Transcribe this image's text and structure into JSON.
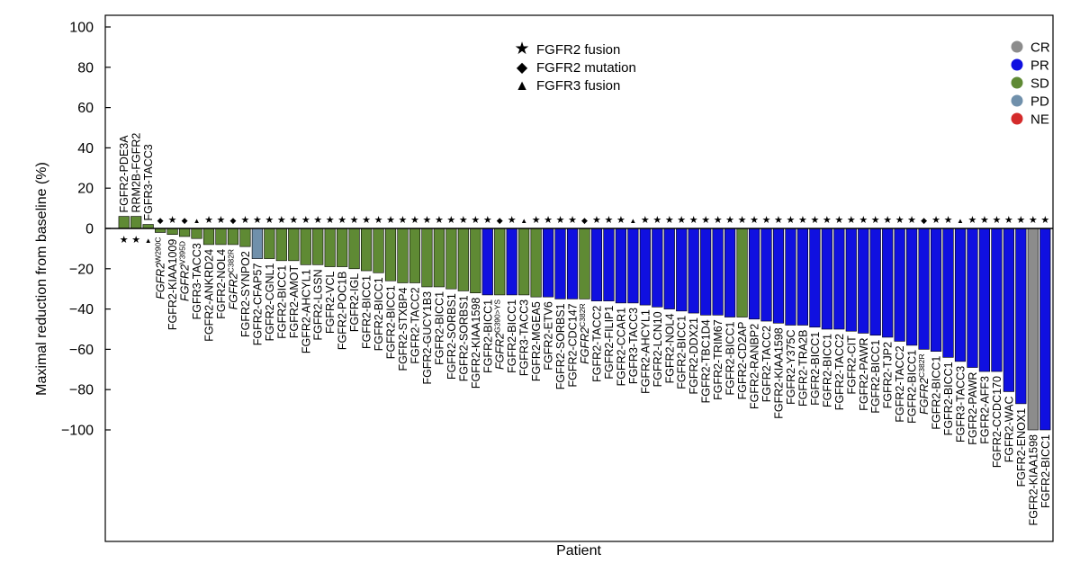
{
  "chart_data": {
    "type": "bar",
    "title": "",
    "xlabel": "Patient",
    "ylabel": "Maximal reduction from baseline (%)",
    "ylim": [
      -160,
      105
    ],
    "yticks": [
      100,
      80,
      60,
      40,
      20,
      0,
      -20,
      -40,
      -60,
      -80,
      -100
    ],
    "ytick_labels": [
      "100",
      "80",
      "60",
      "40",
      "20",
      "0",
      "−20",
      "−40",
      "−60",
      "−80",
      "−100"
    ],
    "grid": false,
    "colors": {
      "CR": "#8c8c8c",
      "PR": "#1010e0",
      "SD": "#5f8a34",
      "PD": "#7090ab",
      "NE": "#d42b2b"
    },
    "marker_glyphs": {
      "fusion": "★",
      "mutation": "◆",
      "fgfr3": "▲"
    },
    "marker_legend": [
      {
        "marker": "fusion",
        "label": "FGFR2 fusion"
      },
      {
        "marker": "mutation",
        "label": "FGFR2 mutation"
      },
      {
        "marker": "fgfr3",
        "label": "FGFR3 fusion"
      }
    ],
    "response_legend": [
      {
        "key": "CR",
        "label": "CR"
      },
      {
        "key": "PR",
        "label": "PR"
      },
      {
        "key": "SD",
        "label": "SD"
      },
      {
        "key": "PD",
        "label": "PD"
      },
      {
        "key": "NE",
        "label": "NE"
      }
    ],
    "bars": [
      {
        "label": "FGFR2-PDE3A",
        "value": 6,
        "response": "SD",
        "marker": "fusion"
      },
      {
        "label": "RRM2B-FGFR2",
        "value": 6,
        "response": "SD",
        "marker": "fusion"
      },
      {
        "label": "FGFR3-TACC3",
        "value": 2,
        "response": "SD",
        "marker": "fgfr3"
      },
      {
        "label": "FGFR2",
        "sup": "W290C",
        "value": -2,
        "response": "SD",
        "marker": "mutation"
      },
      {
        "label": "FGFR2-KIAA1009",
        "value": -3,
        "response": "SD",
        "marker": "fusion"
      },
      {
        "label": "FGFR2",
        "sup": "V395D",
        "value": -4,
        "response": "SD",
        "marker": "mutation"
      },
      {
        "label": "FGFR3-TACC3",
        "value": -5,
        "response": "SD",
        "marker": "fgfr3"
      },
      {
        "label": "FGFR2-ANKRD24",
        "value": -8,
        "response": "SD",
        "marker": "fusion"
      },
      {
        "label": "FGFR2-NOL4",
        "value": -8,
        "response": "SD",
        "marker": "fusion"
      },
      {
        "label": "FGFR2",
        "sup": "C382R",
        "value": -8,
        "response": "SD",
        "marker": "mutation"
      },
      {
        "label": "FGFR2-SYNPO2",
        "value": -9,
        "response": "SD",
        "marker": "fusion"
      },
      {
        "label": "FGFR2-CFAP57",
        "value": -15,
        "response": "PD",
        "marker": "fusion"
      },
      {
        "label": "FGFR2-CGNL1",
        "value": -15,
        "response": "SD",
        "marker": "fusion"
      },
      {
        "label": "FGFR2-BICC1",
        "value": -16,
        "response": "SD",
        "marker": "fusion"
      },
      {
        "label": "FGFR2-AMOT",
        "value": -16,
        "response": "SD",
        "marker": "fusion"
      },
      {
        "label": "FGFR2-AHCYL1",
        "value": -18,
        "response": "SD",
        "marker": "fusion"
      },
      {
        "label": "FGFR2-LGSN",
        "value": -18,
        "response": "SD",
        "marker": "fusion"
      },
      {
        "label": "FGFR2-VCL",
        "value": -19,
        "response": "SD",
        "marker": "fusion"
      },
      {
        "label": "FGFR2-POC1B",
        "value": -19,
        "response": "SD",
        "marker": "fusion"
      },
      {
        "label": "FGFR2-IGL",
        "value": -20,
        "response": "SD",
        "marker": "fusion"
      },
      {
        "label": "FGFR2-BICC1",
        "value": -21,
        "response": "SD",
        "marker": "fusion"
      },
      {
        "label": "FGFR2-BICC1",
        "value": -22,
        "response": "SD",
        "marker": "fusion"
      },
      {
        "label": "FGFR2-BICC1",
        "value": -26,
        "response": "SD",
        "marker": "fusion"
      },
      {
        "label": "FGFR2-STXBP4",
        "value": -27,
        "response": "SD",
        "marker": "fusion"
      },
      {
        "label": "FGFR2-TACC2",
        "value": -27,
        "response": "SD",
        "marker": "fusion"
      },
      {
        "label": "FGFR2-GUCY1B3",
        "value": -29,
        "response": "SD",
        "marker": "fusion"
      },
      {
        "label": "FGFR2-BICC1",
        "value": -29,
        "response": "SD",
        "marker": "fusion"
      },
      {
        "label": "FGFR2-SORBS1",
        "value": -30,
        "response": "SD",
        "marker": "fusion"
      },
      {
        "label": "FGFR2-SORBS1",
        "value": -31,
        "response": "SD",
        "marker": "fusion"
      },
      {
        "label": "FGFR2-KIAA1598",
        "value": -32,
        "response": "SD",
        "marker": "fusion"
      },
      {
        "label": "FGFR2-BICC1",
        "value": -33,
        "response": "PR",
        "marker": "fusion"
      },
      {
        "label": "FGFR2",
        "sup": "G390>YS",
        "value": -33,
        "response": "SD",
        "marker": "mutation"
      },
      {
        "label": "FGFR2-BICC1",
        "value": -33,
        "response": "PR",
        "marker": "fusion"
      },
      {
        "label": "FGFR3-TACC3",
        "value": -33,
        "response": "SD",
        "marker": "fgfr3"
      },
      {
        "label": "FGFR2-MGEA5",
        "value": -34,
        "response": "SD",
        "marker": "fusion"
      },
      {
        "label": "FGFR2-ETV6",
        "value": -34,
        "response": "PR",
        "marker": "fusion"
      },
      {
        "label": "FGFR2-SORBS1",
        "value": -35,
        "response": "PR",
        "marker": "fusion"
      },
      {
        "label": "FGFR2-CDC147",
        "value": -35,
        "response": "PR",
        "marker": "fusion"
      },
      {
        "label": "FGFR2",
        "sup": "C382R",
        "value": -35,
        "response": "SD",
        "marker": "mutation"
      },
      {
        "label": "FGFR2-TACC2",
        "value": -36,
        "response": "PR",
        "marker": "fusion"
      },
      {
        "label": "FGFR2-FILIP1",
        "value": -36,
        "response": "PR",
        "marker": "fusion"
      },
      {
        "label": "FGFR2-CCAR1",
        "value": -37,
        "response": "PR",
        "marker": "fusion"
      },
      {
        "label": "FGFR3-TACC3",
        "value": -37,
        "response": "PR",
        "marker": "fgfr3"
      },
      {
        "label": "FGFR2-AHCYL1",
        "value": -38,
        "response": "PR",
        "marker": "fusion"
      },
      {
        "label": "FGFR2-LCN10",
        "value": -39,
        "response": "PR",
        "marker": "fusion"
      },
      {
        "label": "FGFR2-NOL4",
        "value": -40,
        "response": "PR",
        "marker": "fusion"
      },
      {
        "label": "FGFR2-BICC1",
        "value": -41,
        "response": "PR",
        "marker": "fusion"
      },
      {
        "label": "FGFR2-DDX21",
        "value": -42,
        "response": "PR",
        "marker": "fusion"
      },
      {
        "label": "FGFR2-TBC1D4",
        "value": -43,
        "response": "PR",
        "marker": "fusion"
      },
      {
        "label": "FGFR2-TRIM67",
        "value": -43,
        "response": "PR",
        "marker": "fusion"
      },
      {
        "label": "FGFR2-BICC1",
        "value": -44,
        "response": "PR",
        "marker": "fusion"
      },
      {
        "label": "FGFR2-CD2AP",
        "value": -44,
        "response": "SD",
        "marker": "fusion"
      },
      {
        "label": "FGFR2-RANBP2",
        "value": -45,
        "response": "PR",
        "marker": "fusion"
      },
      {
        "label": "FGFR2-TACC2",
        "value": -46,
        "response": "PR",
        "marker": "fusion"
      },
      {
        "label": "FGFR2-KIAA1598",
        "value": -47,
        "response": "PR",
        "marker": "fusion"
      },
      {
        "label": "FGFR2-Y375C",
        "value": -48,
        "response": "PR",
        "marker": "fusion"
      },
      {
        "label": "FGFR2-TRA2B",
        "value": -48,
        "response": "PR",
        "marker": "fusion"
      },
      {
        "label": "FGFR2-BICC1",
        "value": -49,
        "response": "PR",
        "marker": "fusion"
      },
      {
        "label": "FGFR2-BICC1",
        "value": -50,
        "response": "PR",
        "marker": "fusion"
      },
      {
        "label": "FGFR2-TACC2",
        "value": -50,
        "response": "PR",
        "marker": "fusion"
      },
      {
        "label": "FGFR2-CIT",
        "value": -51,
        "response": "PR",
        "marker": "fusion"
      },
      {
        "label": "FGFR2-PAWR",
        "value": -52,
        "response": "PR",
        "marker": "fusion"
      },
      {
        "label": "FGFR2-BICC1",
        "value": -53,
        "response": "PR",
        "marker": "fusion"
      },
      {
        "label": "FGFR2-TJP2",
        "value": -54,
        "response": "PR",
        "marker": "fusion"
      },
      {
        "label": "FGFR2-TACC2",
        "value": -56,
        "response": "PR",
        "marker": "fusion"
      },
      {
        "label": "FGFR2-BICC1",
        "value": -58,
        "response": "PR",
        "marker": "fusion"
      },
      {
        "label": "FGFR2",
        "sup": "C382R",
        "value": -60,
        "response": "PR",
        "marker": "mutation"
      },
      {
        "label": "FGFR2-BICC1",
        "value": -61,
        "response": "PR",
        "marker": "fusion"
      },
      {
        "label": "FGFR2-BICC1",
        "value": -64,
        "response": "PR",
        "marker": "fusion"
      },
      {
        "label": "FGFR3-TACC3",
        "value": -66,
        "response": "PR",
        "marker": "fgfr3"
      },
      {
        "label": "FGFR2-PAWR",
        "value": -69,
        "response": "PR",
        "marker": "fusion"
      },
      {
        "label": "FGFR2-AFF3",
        "value": -71,
        "response": "PR",
        "marker": "fusion"
      },
      {
        "label": "FGFR2-CCDC170",
        "value": -71,
        "response": "PR",
        "marker": "fusion"
      },
      {
        "label": "FGFR2-WAC",
        "value": -81,
        "response": "PR",
        "marker": "fusion"
      },
      {
        "label": "FGFR2-ENOX1",
        "value": -87,
        "response": "PR",
        "marker": "fusion"
      },
      {
        "label": "FGFR2-KIAA1598",
        "value": -100,
        "response": "CR",
        "marker": "fusion"
      },
      {
        "label": "FGFR2-BICC1",
        "value": -100,
        "response": "PR",
        "marker": "fusion"
      }
    ]
  }
}
